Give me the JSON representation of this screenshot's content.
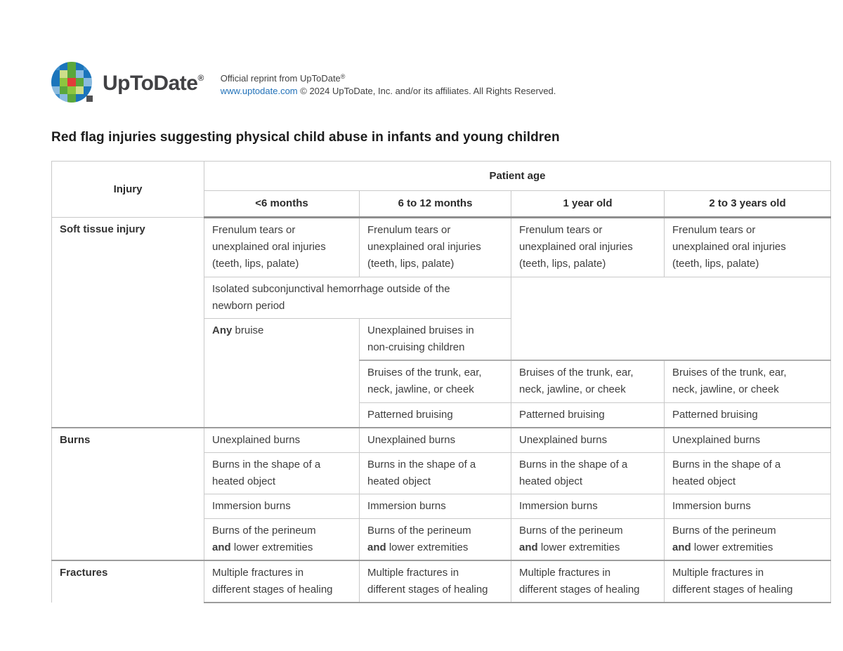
{
  "brand": {
    "name": "UpToDate",
    "registered": "®",
    "reprint_title": "Official reprint from UpToDate",
    "reprint_title_reg": "®",
    "site_link": "www.uptodate.com",
    "copyright": " © 2024 UpToDate, Inc. and/or its affiliates. All Rights Reserved.",
    "logo": {
      "colors": {
        "b1": "#1b75bb",
        "b2": "#3e8ecc",
        "lb": "#8abbdf",
        "g1": "#5aa73c",
        "g2": "#8dc63f",
        "lg": "#cede8a",
        "rd": "#e23c39",
        "dot": "#515153"
      },
      "grid": [
        [
          "b2",
          "b1",
          "g1",
          "b1",
          "b2"
        ],
        [
          "b1",
          "lg",
          "g1",
          "lb",
          "b1"
        ],
        [
          "b1",
          "g2",
          "rd",
          "g1",
          "lb"
        ],
        [
          "lb",
          "g1",
          "g2",
          "lg",
          "b1"
        ],
        [
          "b2",
          "lb",
          "g1",
          "b1",
          "b1"
        ]
      ]
    }
  },
  "page_title": "Red flag injuries suggesting physical child abuse in infants and young children",
  "table": {
    "col_injury": "Injury",
    "col_group": "Patient age",
    "age_cols": [
      "<6 months",
      "6 to 12 months",
      "1 year old",
      "2 to 3 years old"
    ],
    "groups": {
      "soft_tissue": {
        "label": "Soft tissue injury"
      },
      "burns": {
        "label": "Burns"
      },
      "fractures": {
        "label": "Fractures"
      }
    },
    "cells": {
      "frenulum": "Frenulum tears or\nunexplained oral injuries\n(teeth, lips, palate)",
      "subconjunctival": "Isolated subconjunctival hemorrhage outside of the\nnewborn period",
      "any_bold": "Any",
      "any_rest": " bruise",
      "unexplained_bruises": "Unexplained bruises in\nnon-cruising children",
      "trunk_bruises": "Bruises of the trunk, ear,\nneck, jawline, or cheek",
      "patterned_bruising": "Patterned bruising",
      "unexplained_burns": "Unexplained burns",
      "heated_object_burns": "Burns in the shape of a\nheated object",
      "immersion_burns": "Immersion burns",
      "perineum_pre": "Burns of the perineum\n",
      "perineum_bold": "and",
      "perineum_rest": " lower extremities",
      "multiple_fractures": "Multiple fractures in\ndifferent stages of healing"
    }
  }
}
